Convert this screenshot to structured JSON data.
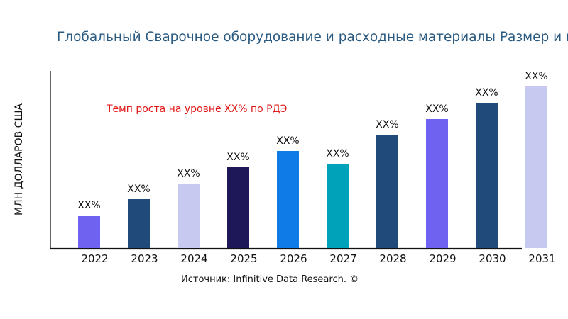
{
  "chart_data": {
    "type": "bar",
    "title": "Глобальный Сварочное оборудование и расходные материалы Размер и м",
    "ylabel": "МЛН ДОЛЛАРОВ США",
    "xlabel": "",
    "annotation": "Темп роста на уровне XX% по РДЭ",
    "source": "Источник: Infinitive Data Research. ©",
    "categories": [
      "2022",
      "2023",
      "2024",
      "2025",
      "2026",
      "2027",
      "2028",
      "2029",
      "2030",
      "2031"
    ],
    "values": [
      46,
      69,
      91,
      114,
      137,
      119,
      160,
      182,
      205,
      228
    ],
    "data_labels": [
      "XX%",
      "XX%",
      "XX%",
      "XX%",
      "XX%",
      "XX%",
      "XX%",
      "XX%",
      "XX%",
      "XX%"
    ],
    "colors": [
      "#7062f0",
      "#1f4a7a",
      "#c8c9f0",
      "#1e1858",
      "#0f7be6",
      "#00a2b9",
      "#1f4a7a",
      "#7062f0",
      "#1f4a7a",
      "#c8c9f0"
    ],
    "ylim": [
      0,
      250
    ],
    "grid": false,
    "legend": "none"
  }
}
